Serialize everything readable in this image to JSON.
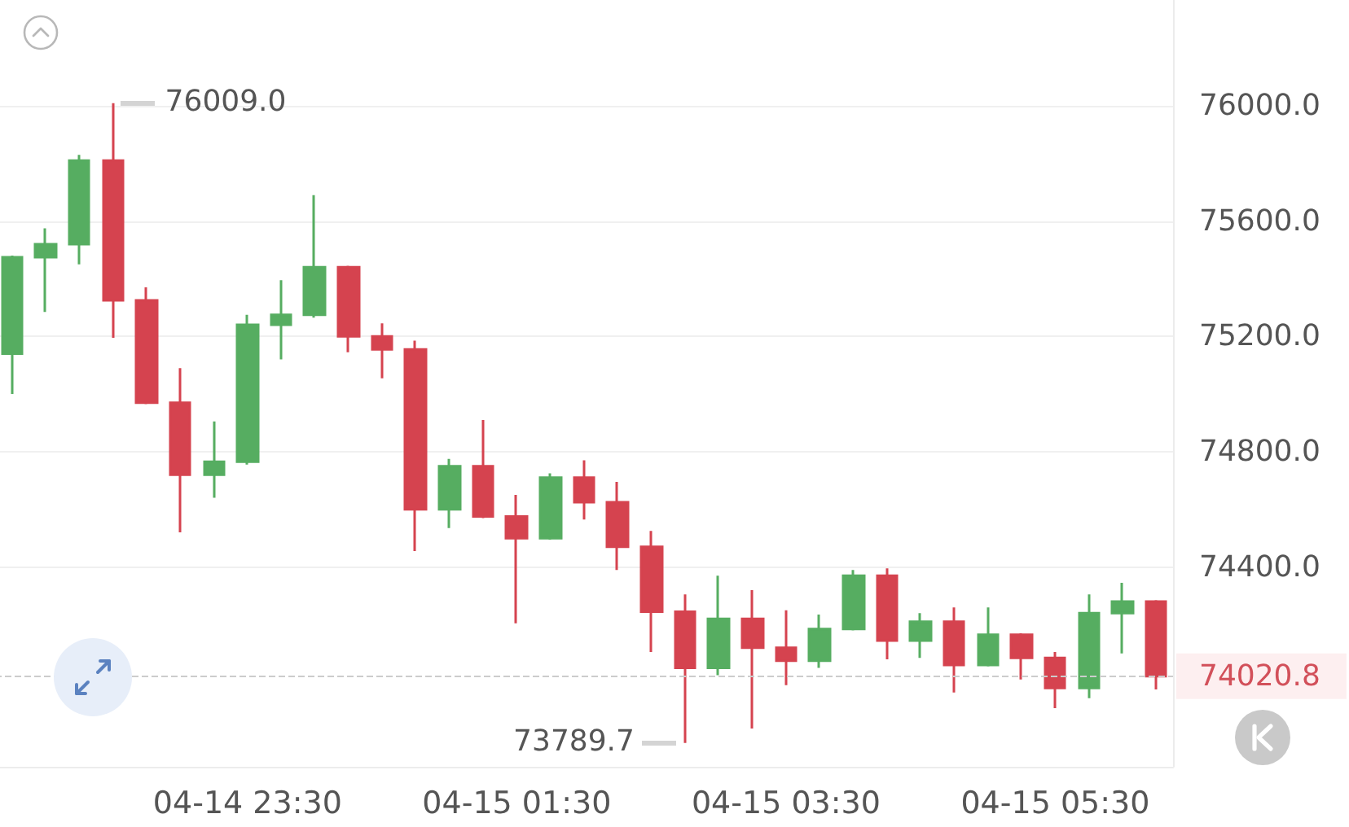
{
  "chart_data": {
    "type": "candlestick",
    "categories": [
      null,
      null,
      null,
      null,
      null,
      null,
      null,
      "04-14 23:30",
      null,
      null,
      null,
      null,
      null,
      null,
      null,
      "04-15 01:30",
      null,
      null,
      null,
      null,
      null,
      null,
      null,
      "04-15 03:30",
      null,
      null,
      null,
      null,
      null,
      null,
      null,
      "04-15 05:30",
      null,
      null,
      null
    ],
    "ohlc": [
      [
        75140,
        75480,
        75000,
        75475
      ],
      [
        75475,
        75575,
        75285,
        75520
      ],
      [
        75520,
        75830,
        75450,
        75810
      ],
      [
        75810,
        76009.0,
        75195,
        75325
      ],
      [
        75325,
        75370,
        74965,
        74970
      ],
      [
        74970,
        75090,
        74520,
        74720
      ],
      [
        74720,
        74905,
        74640,
        74765
      ],
      [
        74765,
        75275,
        74755,
        75240
      ],
      [
        75240,
        75395,
        75120,
        75275
      ],
      [
        75275,
        75690,
        75265,
        75440
      ],
      [
        75440,
        75445,
        75145,
        75200
      ],
      [
        75200,
        75245,
        75055,
        75155
      ],
      [
        75155,
        75185,
        74455,
        74600
      ],
      [
        74600,
        74775,
        74535,
        74750
      ],
      [
        74750,
        74910,
        74570,
        74575
      ],
      [
        74575,
        74650,
        74205,
        74500
      ],
      [
        74500,
        74725,
        74495,
        74710
      ],
      [
        74710,
        74770,
        74565,
        74625
      ],
      [
        74625,
        74695,
        74390,
        74470
      ],
      [
        74470,
        74525,
        74105,
        74245
      ],
      [
        74245,
        74305,
        73789.7,
        74050
      ],
      [
        74050,
        74370,
        74025,
        74220
      ],
      [
        74220,
        74320,
        73840,
        74120
      ],
      [
        74120,
        74250,
        73990,
        74075
      ],
      [
        74075,
        74235,
        74050,
        74185
      ],
      [
        74185,
        74390,
        74180,
        74370
      ],
      [
        74370,
        74395,
        74080,
        74145
      ],
      [
        74145,
        74240,
        74085,
        74210
      ],
      [
        74210,
        74260,
        73965,
        74060
      ],
      [
        74060,
        74260,
        74055,
        74165
      ],
      [
        74165,
        74170,
        74010,
        74085
      ],
      [
        74085,
        74105,
        73910,
        73980
      ],
      [
        73980,
        74305,
        73945,
        74240
      ],
      [
        74240,
        74345,
        74100,
        74280
      ],
      [
        74280,
        74285,
        73975,
        74020.8
      ]
    ],
    "colors": [
      "#56ad61",
      "#56ad61",
      "#56ad61",
      "#d5434f",
      "#d5434f",
      "#d5434f",
      "#56ad61",
      "#56ad61",
      "#56ad61",
      "#56ad61",
      "#d5434f",
      "#d5434f",
      "#d5434f",
      "#56ad61",
      "#d5434f",
      "#d5434f",
      "#56ad61",
      "#d5434f",
      "#d5434f",
      "#d5434f",
      "#d5434f",
      "#56ad61",
      "#d5434f",
      "#d5434f",
      "#56ad61",
      "#56ad61",
      "#d5434f",
      "#56ad61",
      "#d5434f",
      "#56ad61",
      "#d5434f",
      "#d5434f",
      "#56ad61",
      "#56ad61",
      "#d5434f"
    ],
    "ylim": [
      73707,
      76367
    ],
    "yticks": [
      {
        "value": 74400,
        "label": "74400.0"
      },
      {
        "value": 74800,
        "label": "74800.0"
      },
      {
        "value": 75200,
        "label": "75200.0"
      },
      {
        "value": 75600,
        "label": "75600.0"
      },
      {
        "value": 76000,
        "label": "76000.0"
      }
    ],
    "grid": "y",
    "ref_lines": [
      {
        "axis": "y",
        "value": 74020.8,
        "label": "74020.8",
        "color": "#cccccc",
        "line_style": "dashed"
      }
    ],
    "annotations": [
      "76009.0",
      "73789.7"
    ]
  }
}
